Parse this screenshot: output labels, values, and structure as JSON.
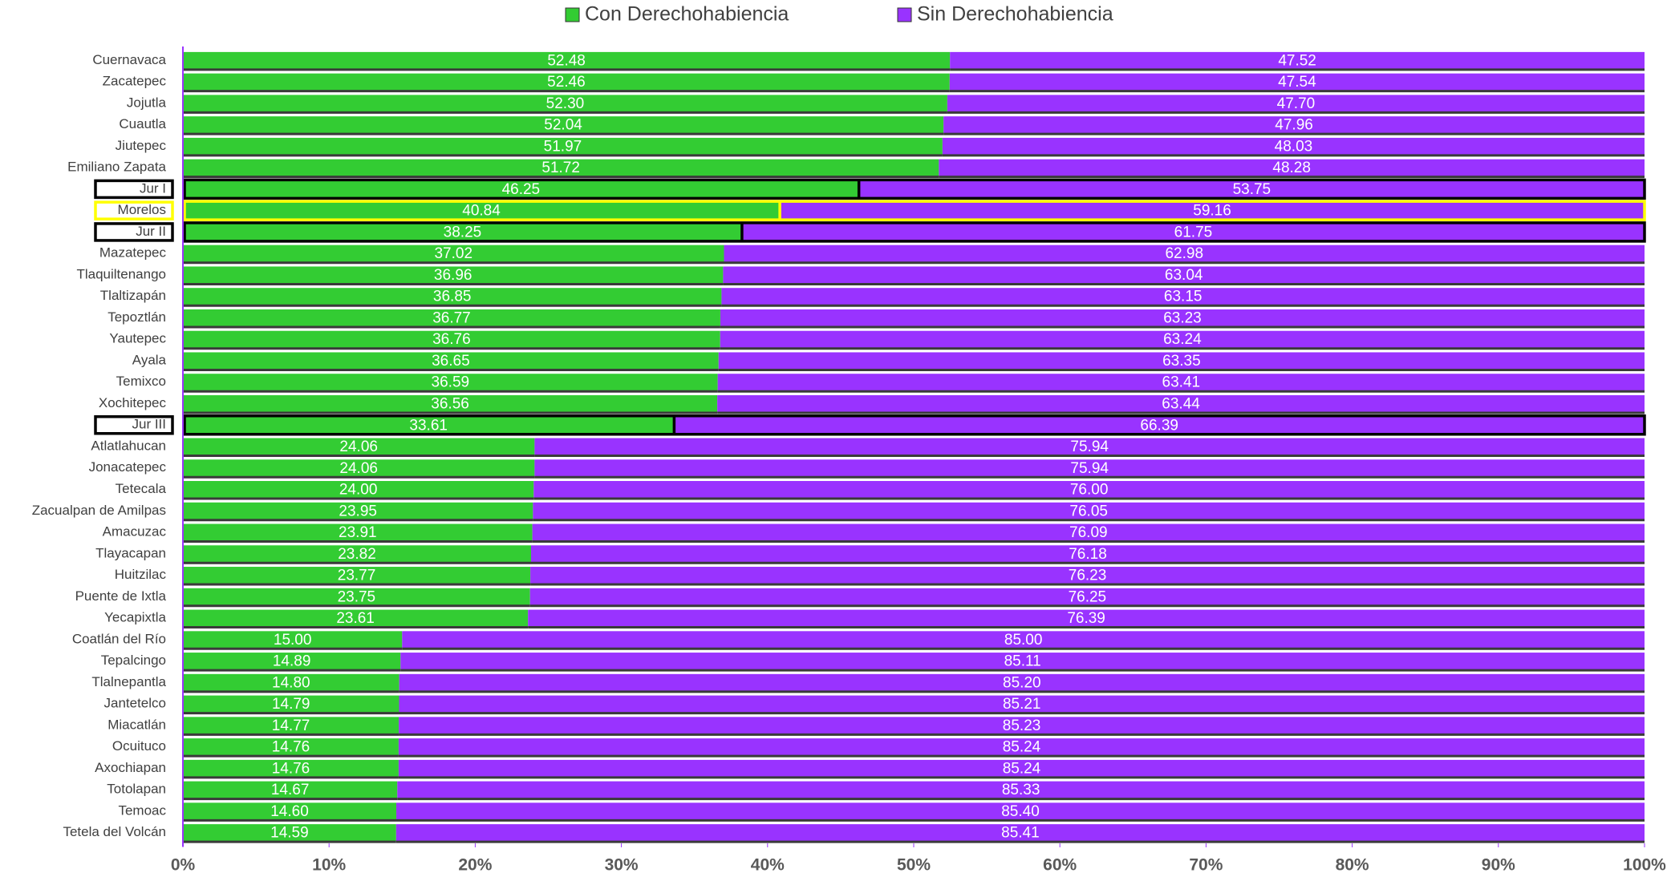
{
  "chart_data": {
    "type": "stacked_barh",
    "categories": [
      "Cuernavaca",
      "Zacatepec",
      "Jojutla",
      "Cuautla",
      "Jiutepec",
      "Emiliano Zapata",
      "Jur I",
      "Morelos",
      "Jur II",
      "Mazatepec",
      "Tlaquiltenango",
      "Tlaltizapán",
      "Tepoztlán",
      "Yautepec",
      "Ayala",
      "Temixco",
      "Xochitepec",
      "Jur III",
      "Atlatlahucan",
      "Jonacatepec",
      "Tetecala",
      "Zacualpan de Amilpas",
      "Amacuzac",
      "Tlayacapan",
      "Huitzilac",
      "Puente de Ixtla",
      "Yecapixtla",
      "Coatlán del Río",
      "Tepalcingo",
      "Tlalnepantla",
      "Jantetelco",
      "Miacatlán",
      "Ocuituco",
      "Axochiapan",
      "Totolapan",
      "Temoac",
      "Tetela del Volcán"
    ],
    "series": [
      {
        "name": "Con Derechohabiencia",
        "color": "#33cc33",
        "values": [
          52.48,
          52.46,
          52.3,
          52.04,
          51.97,
          51.72,
          46.25,
          40.84,
          38.25,
          37.02,
          36.96,
          36.85,
          36.77,
          36.76,
          36.65,
          36.59,
          36.56,
          33.61,
          24.06,
          24.06,
          24.0,
          23.95,
          23.91,
          23.82,
          23.77,
          23.75,
          23.61,
          15.0,
          14.89,
          14.8,
          14.79,
          14.77,
          14.76,
          14.76,
          14.67,
          14.6,
          14.59
        ],
        "value_labels": [
          "52.48",
          "52.46",
          "52.30",
          "52.04",
          "51.97",
          "51.72",
          "46.25",
          "40.84",
          "38.25",
          "37.02",
          "36.96",
          "36.85",
          "36.77",
          "36.76",
          "36.65",
          "36.59",
          "36.56",
          "33.61",
          "24.06",
          "24.06",
          "24.00",
          "23.95",
          "23.91",
          "23.82",
          "23.77",
          "23.75",
          "23.61",
          "15.00",
          "14.89",
          "14.80",
          "14.79",
          "14.77",
          "14.76",
          "14.76",
          "14.67",
          "14.60",
          "14.59"
        ]
      },
      {
        "name": "Sin Derechohabiencia",
        "color": "#9933ff",
        "values": [
          47.52,
          47.54,
          47.7,
          47.96,
          48.03,
          48.28,
          53.75,
          59.16,
          61.75,
          62.98,
          63.04,
          63.15,
          63.23,
          63.24,
          63.35,
          63.41,
          63.44,
          66.39,
          75.94,
          75.94,
          76.0,
          76.05,
          76.09,
          76.18,
          76.23,
          76.25,
          76.39,
          85.0,
          85.11,
          85.2,
          85.21,
          85.23,
          85.24,
          85.24,
          85.33,
          85.4,
          85.41
        ],
        "value_labels": [
          "47.52",
          "47.54",
          "47.70",
          "47.96",
          "48.03",
          "48.28",
          "53.75",
          "59.16",
          "61.75",
          "62.98",
          "63.04",
          "63.15",
          "63.23",
          "63.24",
          "63.35",
          "63.41",
          "63.44",
          "66.39",
          "75.94",
          "75.94",
          "76.00",
          "76.05",
          "76.09",
          "76.18",
          "76.23",
          "76.25",
          "76.39",
          "85.00",
          "85.11",
          "85.20",
          "85.21",
          "85.23",
          "85.24",
          "85.24",
          "85.33",
          "85.40",
          "85.41"
        ]
      }
    ],
    "highlight_colors": [
      null,
      null,
      null,
      null,
      null,
      null,
      "#000000",
      "#ffff00",
      "#000000",
      null,
      null,
      null,
      null,
      null,
      null,
      null,
      null,
      "#000000",
      null,
      null,
      null,
      null,
      null,
      null,
      null,
      null,
      null,
      null,
      null,
      null,
      null,
      null,
      null,
      null,
      null,
      null,
      null
    ],
    "xlim": [
      0,
      100
    ],
    "xticks": [
      {
        "value": 0,
        "label": "0%"
      },
      {
        "value": 10,
        "label": "10%"
      },
      {
        "value": 20,
        "label": "20%"
      },
      {
        "value": 30,
        "label": "30%"
      },
      {
        "value": 40,
        "label": "40%"
      },
      {
        "value": 50,
        "label": "50%"
      },
      {
        "value": 60,
        "label": "60%"
      },
      {
        "value": 70,
        "label": "70%"
      },
      {
        "value": 80,
        "label": "80%"
      },
      {
        "value": 90,
        "label": "90%"
      },
      {
        "value": 100,
        "label": "100%"
      }
    ],
    "legend": "top"
  }
}
